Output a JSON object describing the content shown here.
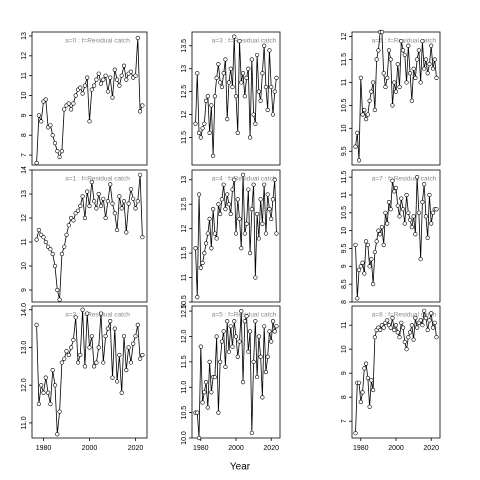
{
  "x_label": "Year",
  "chart_data": [
    {
      "type": "line",
      "title": "a=0  :  f=Residual catch",
      "xlim": [
        1975,
        2025
      ],
      "ylim": [
        6.5,
        13.2
      ],
      "yticks": [
        7,
        8,
        9,
        10,
        11,
        12,
        13
      ],
      "x": [
        1977,
        1978,
        1979,
        1980,
        1981,
        1982,
        1983,
        1984,
        1985,
        1986,
        1987,
        1988,
        1989,
        1990,
        1991,
        1992,
        1993,
        1994,
        1995,
        1996,
        1997,
        1998,
        1999,
        2000,
        2001,
        2002,
        2003,
        2004,
        2005,
        2006,
        2007,
        2008,
        2009,
        2010,
        2011,
        2012,
        2013,
        2014,
        2015,
        2016,
        2017,
        2018,
        2019,
        2020,
        2021,
        2022,
        2023
      ],
      "values": [
        6.6,
        9.0,
        8.7,
        9.7,
        9.8,
        8.4,
        8.5,
        8.0,
        7.6,
        7.2,
        6.9,
        7.2,
        9.3,
        9.5,
        9.6,
        9.3,
        9.6,
        10.0,
        10.3,
        10.4,
        10.1,
        10.5,
        10.9,
        8.7,
        10.3,
        10.5,
        10.8,
        11.1,
        10.6,
        10.8,
        11.0,
        10.2,
        10.9,
        9.9,
        11.3,
        10.8,
        10.5,
        11.0,
        11.5,
        10.8,
        11.1,
        11.2,
        10.9,
        11.0,
        12.9,
        9.2,
        9.5
      ]
    },
    {
      "type": "line",
      "title": "a=1  :  f=Residual catch",
      "xlim": [
        1975,
        2025
      ],
      "ylim": [
        8.5,
        14.0
      ],
      "yticks": [
        9,
        10,
        11,
        12,
        13,
        14
      ],
      "x": [
        1977,
        1978,
        1979,
        1980,
        1981,
        1982,
        1983,
        1984,
        1985,
        1986,
        1987,
        1988,
        1989,
        1990,
        1991,
        1992,
        1993,
        1994,
        1995,
        1996,
        1997,
        1998,
        1999,
        2000,
        2001,
        2002,
        2003,
        2004,
        2005,
        2006,
        2007,
        2008,
        2009,
        2010,
        2011,
        2012,
        2013,
        2014,
        2015,
        2016,
        2017,
        2018,
        2019,
        2020,
        2021,
        2022,
        2023
      ],
      "values": [
        11.1,
        11.5,
        11.3,
        11.2,
        11.0,
        10.8,
        10.7,
        10.5,
        10.0,
        9.0,
        8.6,
        10.5,
        10.8,
        11.3,
        11.7,
        12.0,
        11.9,
        12.2,
        12.3,
        12.5,
        12.9,
        12.0,
        13.1,
        12.5,
        13.5,
        12.7,
        12.4,
        13.0,
        12.5,
        12.8,
        12.0,
        12.7,
        13.4,
        12.6,
        12.2,
        11.5,
        12.9,
        12.4,
        12.7,
        11.4,
        12.6,
        13.2,
        12.8,
        12.4,
        12.7,
        13.8,
        11.2
      ]
    },
    {
      "type": "line",
      "title": "a=2  :  f=Residual catch",
      "xlim": [
        1975,
        2025
      ],
      "ylim": [
        10.6,
        14.1
      ],
      "yticks": [
        {
          "value": 11,
          "label": "11.0"
        },
        {
          "value": 12,
          "label": "12.0"
        },
        {
          "value": 13,
          "label": "13.0"
        },
        {
          "value": 14,
          "label": "14.0"
        }
      ],
      "xticks": [
        1980,
        2000,
        2020
      ],
      "x": [
        1977,
        1978,
        1979,
        1980,
        1981,
        1982,
        1983,
        1984,
        1985,
        1986,
        1987,
        1988,
        1989,
        1990,
        1991,
        1992,
        1993,
        1994,
        1995,
        1996,
        1997,
        1998,
        1999,
        2000,
        2001,
        2002,
        2003,
        2004,
        2005,
        2006,
        2007,
        2008,
        2009,
        2010,
        2011,
        2012,
        2013,
        2014,
        2015,
        2016,
        2017,
        2018,
        2019,
        2020,
        2021,
        2022,
        2023
      ],
      "values": [
        13.6,
        11.5,
        12.0,
        11.8,
        12.2,
        11.8,
        11.5,
        12.4,
        12.0,
        10.7,
        11.3,
        12.6,
        12.7,
        12.9,
        12.8,
        13.0,
        13.2,
        13.8,
        12.6,
        12.8,
        14.0,
        12.5,
        13.9,
        13.0,
        13.3,
        12.5,
        12.6,
        13.0,
        13.9,
        12.6,
        13.3,
        13.5,
        13.7,
        12.2,
        13.5,
        12.1,
        12.8,
        11.8,
        13.3,
        12.4,
        13.0,
        12.6,
        13.1,
        13.3,
        13.6,
        12.7,
        12.8
      ]
    },
    {
      "type": "line",
      "title": "a=3  :  f=Residual catch",
      "xlim": [
        1975,
        2025
      ],
      "ylim": [
        10.9,
        13.8
      ],
      "yticks": [
        11.5,
        12.0,
        12.5,
        13.0,
        13.5
      ],
      "x": [
        1977,
        1978,
        1979,
        1980,
        1981,
        1982,
        1983,
        1984,
        1985,
        1986,
        1987,
        1988,
        1989,
        1990,
        1991,
        1992,
        1993,
        1994,
        1995,
        1996,
        1997,
        1998,
        1999,
        2000,
        2001,
        2002,
        2003,
        2004,
        2005,
        2006,
        2007,
        2008,
        2009,
        2010,
        2011,
        2012,
        2013,
        2014,
        2015,
        2016,
        2017,
        2018,
        2019,
        2020,
        2021,
        2022,
        2023
      ],
      "values": [
        11.8,
        12.9,
        11.6,
        11.5,
        11.7,
        11.8,
        12.3,
        12.4,
        11.6,
        12.2,
        11.1,
        12.4,
        12.8,
        13.1,
        12.7,
        12.6,
        12.9,
        13.2,
        11.9,
        12.7,
        13.0,
        12.6,
        13.7,
        12.4,
        11.6,
        13.6,
        12.7,
        12.9,
        12.4,
        12.8,
        13.0,
        11.5,
        13.2,
        12.0,
        11.8,
        13.3,
        12.5,
        12.3,
        12.9,
        13.5,
        12.6,
        12.1,
        13.4,
        12.6,
        12.0,
        12.5,
        12.8
      ]
    },
    {
      "type": "line",
      "title": "a=4  :  f=Residual catch",
      "xlim": [
        1975,
        2025
      ],
      "ylim": [
        10.5,
        13.2
      ],
      "yticks": [
        10.5,
        11.0,
        11.5,
        12.0,
        12.5,
        13.0
      ],
      "x": [
        1977,
        1978,
        1979,
        1980,
        1981,
        1982,
        1983,
        1984,
        1985,
        1986,
        1987,
        1988,
        1989,
        1990,
        1991,
        1992,
        1993,
        1994,
        1995,
        1996,
        1997,
        1998,
        1999,
        2000,
        2001,
        2002,
        2003,
        2004,
        2005,
        2006,
        2007,
        2008,
        2009,
        2010,
        2011,
        2012,
        2013,
        2014,
        2015,
        2016,
        2017,
        2018,
        2019,
        2020,
        2021,
        2022,
        2023
      ],
      "values": [
        11.6,
        10.6,
        12.7,
        11.2,
        11.3,
        11.5,
        11.7,
        11.9,
        12.2,
        11.6,
        12.4,
        11.9,
        11.8,
        12.5,
        12.3,
        12.6,
        12.9,
        12.4,
        12.7,
        12.5,
        12.3,
        12.8,
        13.0,
        11.9,
        12.6,
        12.2,
        11.6,
        13.1,
        11.9,
        12.1,
        12.8,
        11.5,
        12.4,
        12.9,
        11.0,
        12.3,
        11.8,
        12.6,
        12.1,
        12.9,
        11.9,
        12.7,
        12.4,
        12.2,
        12.6,
        13.0,
        11.9
      ]
    },
    {
      "type": "line",
      "title": "a=5  :  f=Residual catch",
      "xlim": [
        1975,
        2025
      ],
      "ylim": [
        10.0,
        12.6
      ],
      "yticks": [
        {
          "value": 10,
          "label": "10.0"
        },
        10.5,
        {
          "value": 11,
          "label": "11.0"
        },
        11.5,
        {
          "value": 12,
          "label": "12.0"
        },
        12.5
      ],
      "xticks": [
        1980,
        2000,
        2020
      ],
      "x": [
        1977,
        1978,
        1979,
        1980,
        1981,
        1982,
        1983,
        1984,
        1985,
        1986,
        1987,
        1988,
        1989,
        1990,
        1991,
        1992,
        1993,
        1994,
        1995,
        1996,
        1997,
        1998,
        1999,
        2000,
        2001,
        2002,
        2003,
        2004,
        2005,
        2006,
        2007,
        2008,
        2009,
        2010,
        2011,
        2012,
        2013,
        2014,
        2015,
        2016,
        2017,
        2018,
        2019,
        2020,
        2021,
        2022,
        2023
      ],
      "values": [
        10.5,
        10.5,
        10.0,
        11.8,
        10.7,
        10.9,
        11.1,
        10.6,
        11.5,
        10.9,
        11.2,
        11.2,
        12.0,
        10.5,
        11.5,
        11.9,
        12.1,
        11.4,
        12.3,
        11.7,
        12.2,
        11.8,
        12.3,
        12.0,
        11.6,
        11.9,
        12.5,
        11.1,
        12.3,
        12.4,
        11.7,
        12.1,
        10.1,
        11.5,
        12.3,
        11.2,
        12.0,
        11.6,
        10.8,
        12.2,
        11.3,
        11.6,
        12.1,
        11.9,
        12.3,
        12.1,
        12.2
      ]
    },
    {
      "type": "line",
      "title": "a=6  :  f=Residual catch",
      "xlim": [
        1975,
        2025
      ],
      "ylim": [
        9.2,
        12.1
      ],
      "yticks": [
        9.5,
        10.0,
        10.5,
        11.0,
        11.5,
        12.0
      ],
      "x": [
        1977,
        1978,
        1979,
        1980,
        1981,
        1982,
        1983,
        1984,
        1985,
        1986,
        1987,
        1988,
        1989,
        1990,
        1991,
        1992,
        1993,
        1994,
        1995,
        1996,
        1997,
        1998,
        1999,
        2000,
        2001,
        2002,
        2003,
        2004,
        2005,
        2006,
        2007,
        2008,
        2009,
        2010,
        2011,
        2012,
        2013,
        2014,
        2015,
        2016,
        2017,
        2018,
        2019,
        2020,
        2021,
        2022,
        2023
      ],
      "values": [
        9.6,
        9.9,
        9.3,
        11.1,
        10.3,
        10.4,
        10.2,
        10.3,
        10.6,
        10.8,
        11.0,
        10.4,
        11.5,
        11.7,
        12.1,
        12.1,
        11.2,
        10.9,
        11.1,
        11.7,
        11.5,
        10.5,
        11.0,
        10.8,
        11.4,
        10.9,
        11.9,
        11.7,
        11.6,
        11.0,
        11.8,
        11.2,
        10.6,
        11.3,
        11.1,
        11.5,
        11.7,
        11.0,
        11.9,
        11.3,
        11.5,
        11.2,
        11.4,
        11.8,
        11.3,
        11.5,
        11.1
      ]
    },
    {
      "type": "line",
      "title": "a=7  :  f=Residual catch",
      "xlim": [
        1975,
        2025
      ],
      "ylim": [
        8.0,
        11.7
      ],
      "yticks": [
        8.0,
        8.5,
        9.0,
        9.5,
        10.0,
        10.5,
        11.0,
        11.5
      ],
      "x": [
        1977,
        1978,
        1979,
        1980,
        1981,
        1982,
        1983,
        1984,
        1985,
        1986,
        1987,
        1988,
        1989,
        1990,
        1991,
        1992,
        1993,
        1994,
        1995,
        1996,
        1997,
        1998,
        1999,
        2000,
        2001,
        2002,
        2003,
        2004,
        2005,
        2006,
        2007,
        2008,
        2009,
        2010,
        2011,
        2012,
        2013,
        2014,
        2015,
        2016,
        2017,
        2018,
        2019,
        2020,
        2021,
        2022,
        2023
      ],
      "values": [
        9.6,
        8.1,
        8.9,
        9.0,
        9.1,
        8.8,
        9.7,
        9.6,
        9.0,
        9.2,
        8.5,
        9.4,
        9.7,
        10.0,
        9.9,
        10.1,
        9.6,
        10.5,
        10.2,
        10.8,
        10.6,
        11.4,
        11.1,
        11.2,
        10.7,
        10.4,
        10.9,
        10.6,
        10.2,
        11.0,
        10.5,
        10.3,
        10.1,
        10.4,
        9.9,
        11.5,
        10.5,
        9.2,
        10.8,
        11.3,
        10.4,
        9.8,
        11.0,
        10.2,
        10.5,
        10.6,
        10.6
      ]
    },
    {
      "type": "line",
      "title": "a=8  :  f=Residual catch",
      "xlim": [
        1975,
        2025
      ],
      "ylim": [
        6.3,
        11.8
      ],
      "yticks": [
        7,
        8,
        9,
        10,
        11
      ],
      "xticks": [
        1980,
        2000,
        2020
      ],
      "x": [
        1977,
        1978,
        1979,
        1980,
        1981,
        1982,
        1983,
        1984,
        1985,
        1986,
        1987,
        1988,
        1989,
        1990,
        1991,
        1992,
        1993,
        1994,
        1995,
        1996,
        1997,
        1998,
        1999,
        2000,
        2001,
        2002,
        2003,
        2004,
        2005,
        2006,
        2007,
        2008,
        2009,
        2010,
        2011,
        2012,
        2013,
        2014,
        2015,
        2016,
        2017,
        2018,
        2019,
        2020,
        2021,
        2022,
        2023
      ],
      "values": [
        6.5,
        8.6,
        8.6,
        7.8,
        8.2,
        9.2,
        9.4,
        8.8,
        7.6,
        8.7,
        8.3,
        10.5,
        10.8,
        10.9,
        10.8,
        11.0,
        10.9,
        11.1,
        11.2,
        11.0,
        10.9,
        11.3,
        10.8,
        11.0,
        10.7,
        10.5,
        11.1,
        10.9,
        10.3,
        10.0,
        10.5,
        10.7,
        11.0,
        10.4,
        11.3,
        10.9,
        11.1,
        11.2,
        11.0,
        11.6,
        11.3,
        10.8,
        11.2,
        11.5,
        10.9,
        11.1,
        10.5
      ]
    }
  ]
}
